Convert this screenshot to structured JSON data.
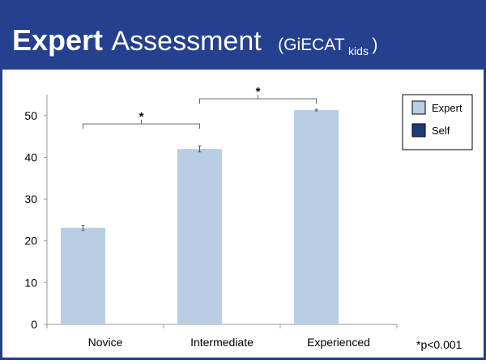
{
  "chart_data": {
    "type": "bar",
    "title_parts": [
      "Expert",
      "Assessment",
      "(GiECAT",
      "kids",
      ")"
    ],
    "categories": [
      "Novice",
      "Intermediate",
      "Experienced"
    ],
    "series": [
      {
        "name": "Expert",
        "color": "#b9cde5",
        "values": [
          23.1,
          42.0,
          51.3
        ],
        "errors": [
          0.6,
          0.7,
          0.2
        ]
      },
      {
        "name": "Self",
        "color": "#1f3a7a",
        "values": [
          null,
          null,
          null
        ]
      }
    ],
    "ylim": [
      0,
      55
    ],
    "yticks": [
      0,
      10,
      20,
      30,
      40,
      50
    ],
    "brackets": [
      {
        "label": "*",
        "y": 48
      },
      {
        "label": "*",
        "y": 54
      }
    ],
    "footnote": "*p<0.001",
    "legend": "upper right"
  }
}
